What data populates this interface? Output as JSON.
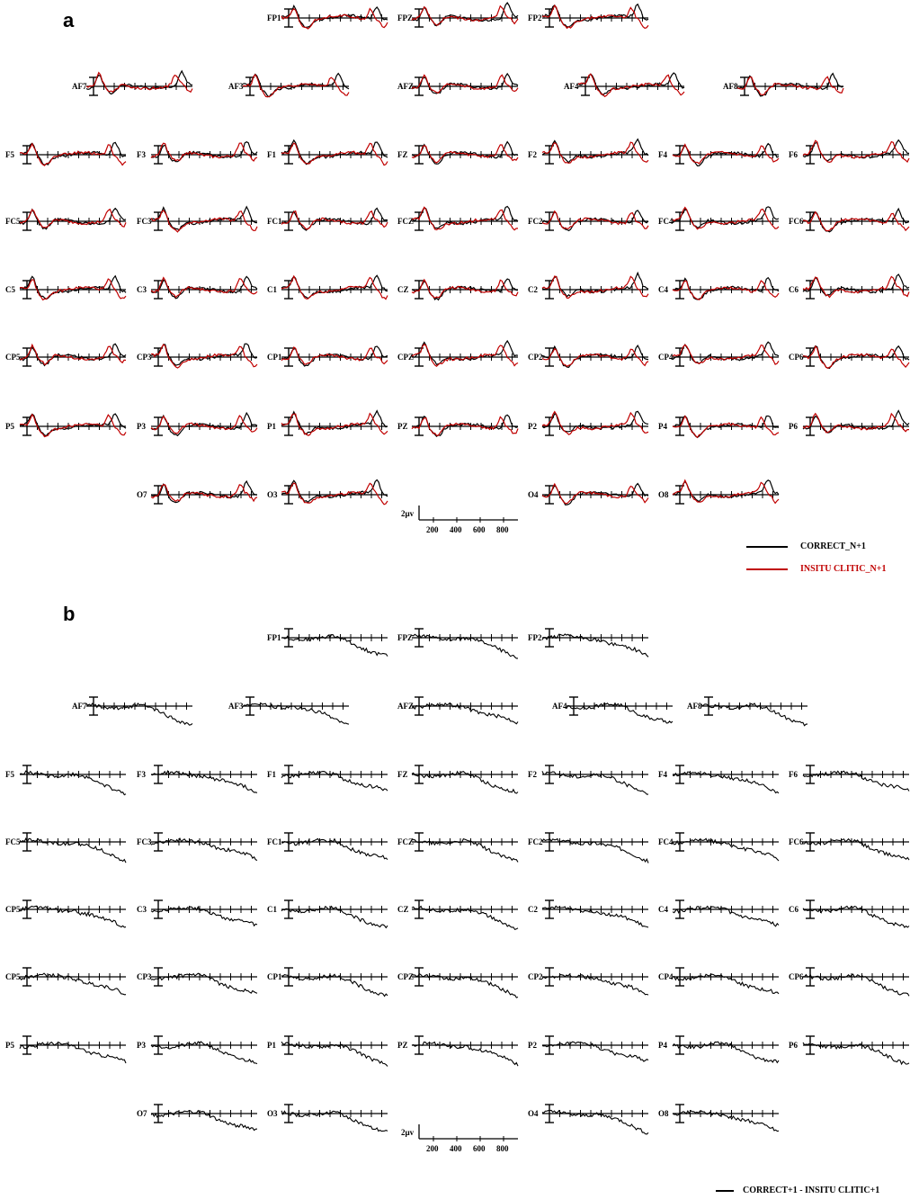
{
  "panels": {
    "a": {
      "letter": "a"
    },
    "b": {
      "letter": "b"
    }
  },
  "legend_a": [
    {
      "label": "CORRECT_N+1",
      "color": "#000000"
    },
    {
      "label": "INSITU CLITIC_N+1",
      "color": "#c00000"
    }
  ],
  "legend_b": [
    {
      "label": "CORRECT+1 - INSITU CLITIC+1",
      "color": "#000000"
    }
  ],
  "scale": {
    "amplitude_label": "2µv",
    "time_ticks": [
      "200",
      "400",
      "600",
      "800"
    ]
  },
  "chart_data": [
    {
      "type": "line",
      "panel": "a",
      "x_unit": "ms",
      "xlim": [
        -100,
        900
      ],
      "x_ticks": [
        200,
        400,
        600,
        800
      ],
      "amplitude_scale": "2µv",
      "electrode_rows": [
        [
          "FP1",
          "FPZ",
          "FP2"
        ],
        [
          "AF7",
          "AF3",
          "AFZ",
          "AF4",
          "AF8"
        ],
        [
          "F5",
          "F3",
          "F1",
          "FZ",
          "F2",
          "F4",
          "F6"
        ],
        [
          "FC5",
          "FC3",
          "FC1",
          "FCZ",
          "FC2",
          "FC4",
          "FC6"
        ],
        [
          "C5",
          "C3",
          "C1",
          "CZ",
          "C2",
          "C4",
          "C6"
        ],
        [
          "CP5",
          "CP3",
          "CP1",
          "CPZ",
          "CP2",
          "CP4",
          "CP6"
        ],
        [
          "P5",
          "P3",
          "P1",
          "PZ",
          "P2",
          "P4",
          "P6"
        ],
        [
          "O7",
          "O3",
          "O4",
          "O8"
        ]
      ],
      "series": [
        {
          "name": "CORRECT_N+1",
          "color": "#000000"
        },
        {
          "name": "INSITU CLITIC_N+1",
          "color": "#c00000"
        }
      ]
    },
    {
      "type": "line",
      "panel": "b",
      "x_unit": "ms",
      "xlim": [
        -100,
        900
      ],
      "x_ticks": [
        200,
        400,
        600,
        800
      ],
      "amplitude_scale": "2µv",
      "electrode_rows": [
        [
          "FP1",
          "FPZ",
          "FP2"
        ],
        [
          "AF7",
          "AF3",
          "AFZ",
          "AF4",
          "AF8"
        ],
        [
          "F5",
          "F3",
          "F1",
          "FZ",
          "F2",
          "F4",
          "F6"
        ],
        [
          "FC5",
          "FC3",
          "FC1",
          "FCZ",
          "FC2",
          "FC4",
          "FC6"
        ],
        [
          "CP5",
          "C3",
          "C1",
          "CZ",
          "C2",
          "C4",
          "C6"
        ],
        [
          "CP5",
          "CP3",
          "CP1",
          "CPZ",
          "CP2",
          "CP4",
          "CP6"
        ],
        [
          "P5",
          "P3",
          "P1",
          "PZ",
          "P2",
          "P4",
          "P6"
        ],
        [
          "O7",
          "O3",
          "O4",
          "O8"
        ]
      ],
      "series": [
        {
          "name": "CORRECT+1 - INSITU CLITIC+1",
          "color": "#000000"
        }
      ]
    }
  ]
}
